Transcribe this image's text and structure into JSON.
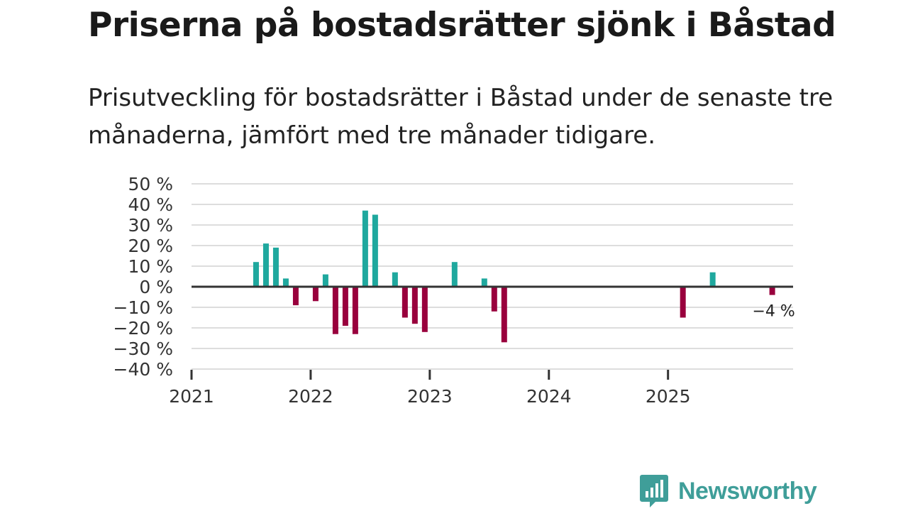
{
  "title": "Priserna på bostadsrätter sjönk i Båstad",
  "subtitle": "Prisutveckling för bostadsrätter i Båstad under de senaste tre månaderna, jämfört med tre månader tidigare.",
  "colors": {
    "positive": "#1fa89e",
    "negative": "#99003d",
    "axis": "#333333",
    "grid": "#dddddd",
    "brand": "#3f9e99"
  },
  "brand": {
    "name": "Newsworthy",
    "icon": "newsworthy-logo-icon"
  },
  "chart_data": {
    "type": "bar",
    "title": "Priserna på bostadsrätter sjönk i Båstad",
    "xlabel": "",
    "ylabel": "",
    "unit": "%",
    "ylim": [
      -40,
      50
    ],
    "yticks": [
      50,
      40,
      30,
      20,
      10,
      0,
      -10,
      -20,
      -30,
      -40
    ],
    "ytick_labels": [
      "50 %",
      "40 %",
      "30 %",
      "20 %",
      "10 %",
      "0 %",
      "−10 %",
      "−20 %",
      "−30 %",
      "−40 %"
    ],
    "xlim": [
      2021.0,
      2026.05
    ],
    "xticks": [
      2021,
      2022,
      2023,
      2024,
      2025
    ],
    "xtick_labels": [
      "2021",
      "2022",
      "2023",
      "2024",
      "2025"
    ],
    "grid": true,
    "points": [
      {
        "month": "2021-07",
        "value": 12
      },
      {
        "month": "2021-08",
        "value": 21
      },
      {
        "month": "2021-09",
        "value": 19
      },
      {
        "month": "2021-10",
        "value": 4
      },
      {
        "month": "2021-11",
        "value": -9
      },
      {
        "month": "2022-01",
        "value": -7
      },
      {
        "month": "2022-02",
        "value": 6
      },
      {
        "month": "2022-03",
        "value": -23
      },
      {
        "month": "2022-04",
        "value": -19
      },
      {
        "month": "2022-05",
        "value": -23
      },
      {
        "month": "2022-06",
        "value": 37
      },
      {
        "month": "2022-07",
        "value": 35
      },
      {
        "month": "2022-09",
        "value": 7
      },
      {
        "month": "2022-10",
        "value": -15
      },
      {
        "month": "2022-11",
        "value": -18
      },
      {
        "month": "2022-12",
        "value": -22
      },
      {
        "month": "2023-03",
        "value": 12
      },
      {
        "month": "2023-06",
        "value": 4
      },
      {
        "month": "2023-07",
        "value": -12
      },
      {
        "month": "2023-08",
        "value": -27
      },
      {
        "month": "2025-02",
        "value": -15
      },
      {
        "month": "2025-05",
        "value": 7
      },
      {
        "month": "2025-11",
        "value": -4
      }
    ],
    "annotation": {
      "month": "2025-11",
      "text": "−4 %"
    }
  }
}
